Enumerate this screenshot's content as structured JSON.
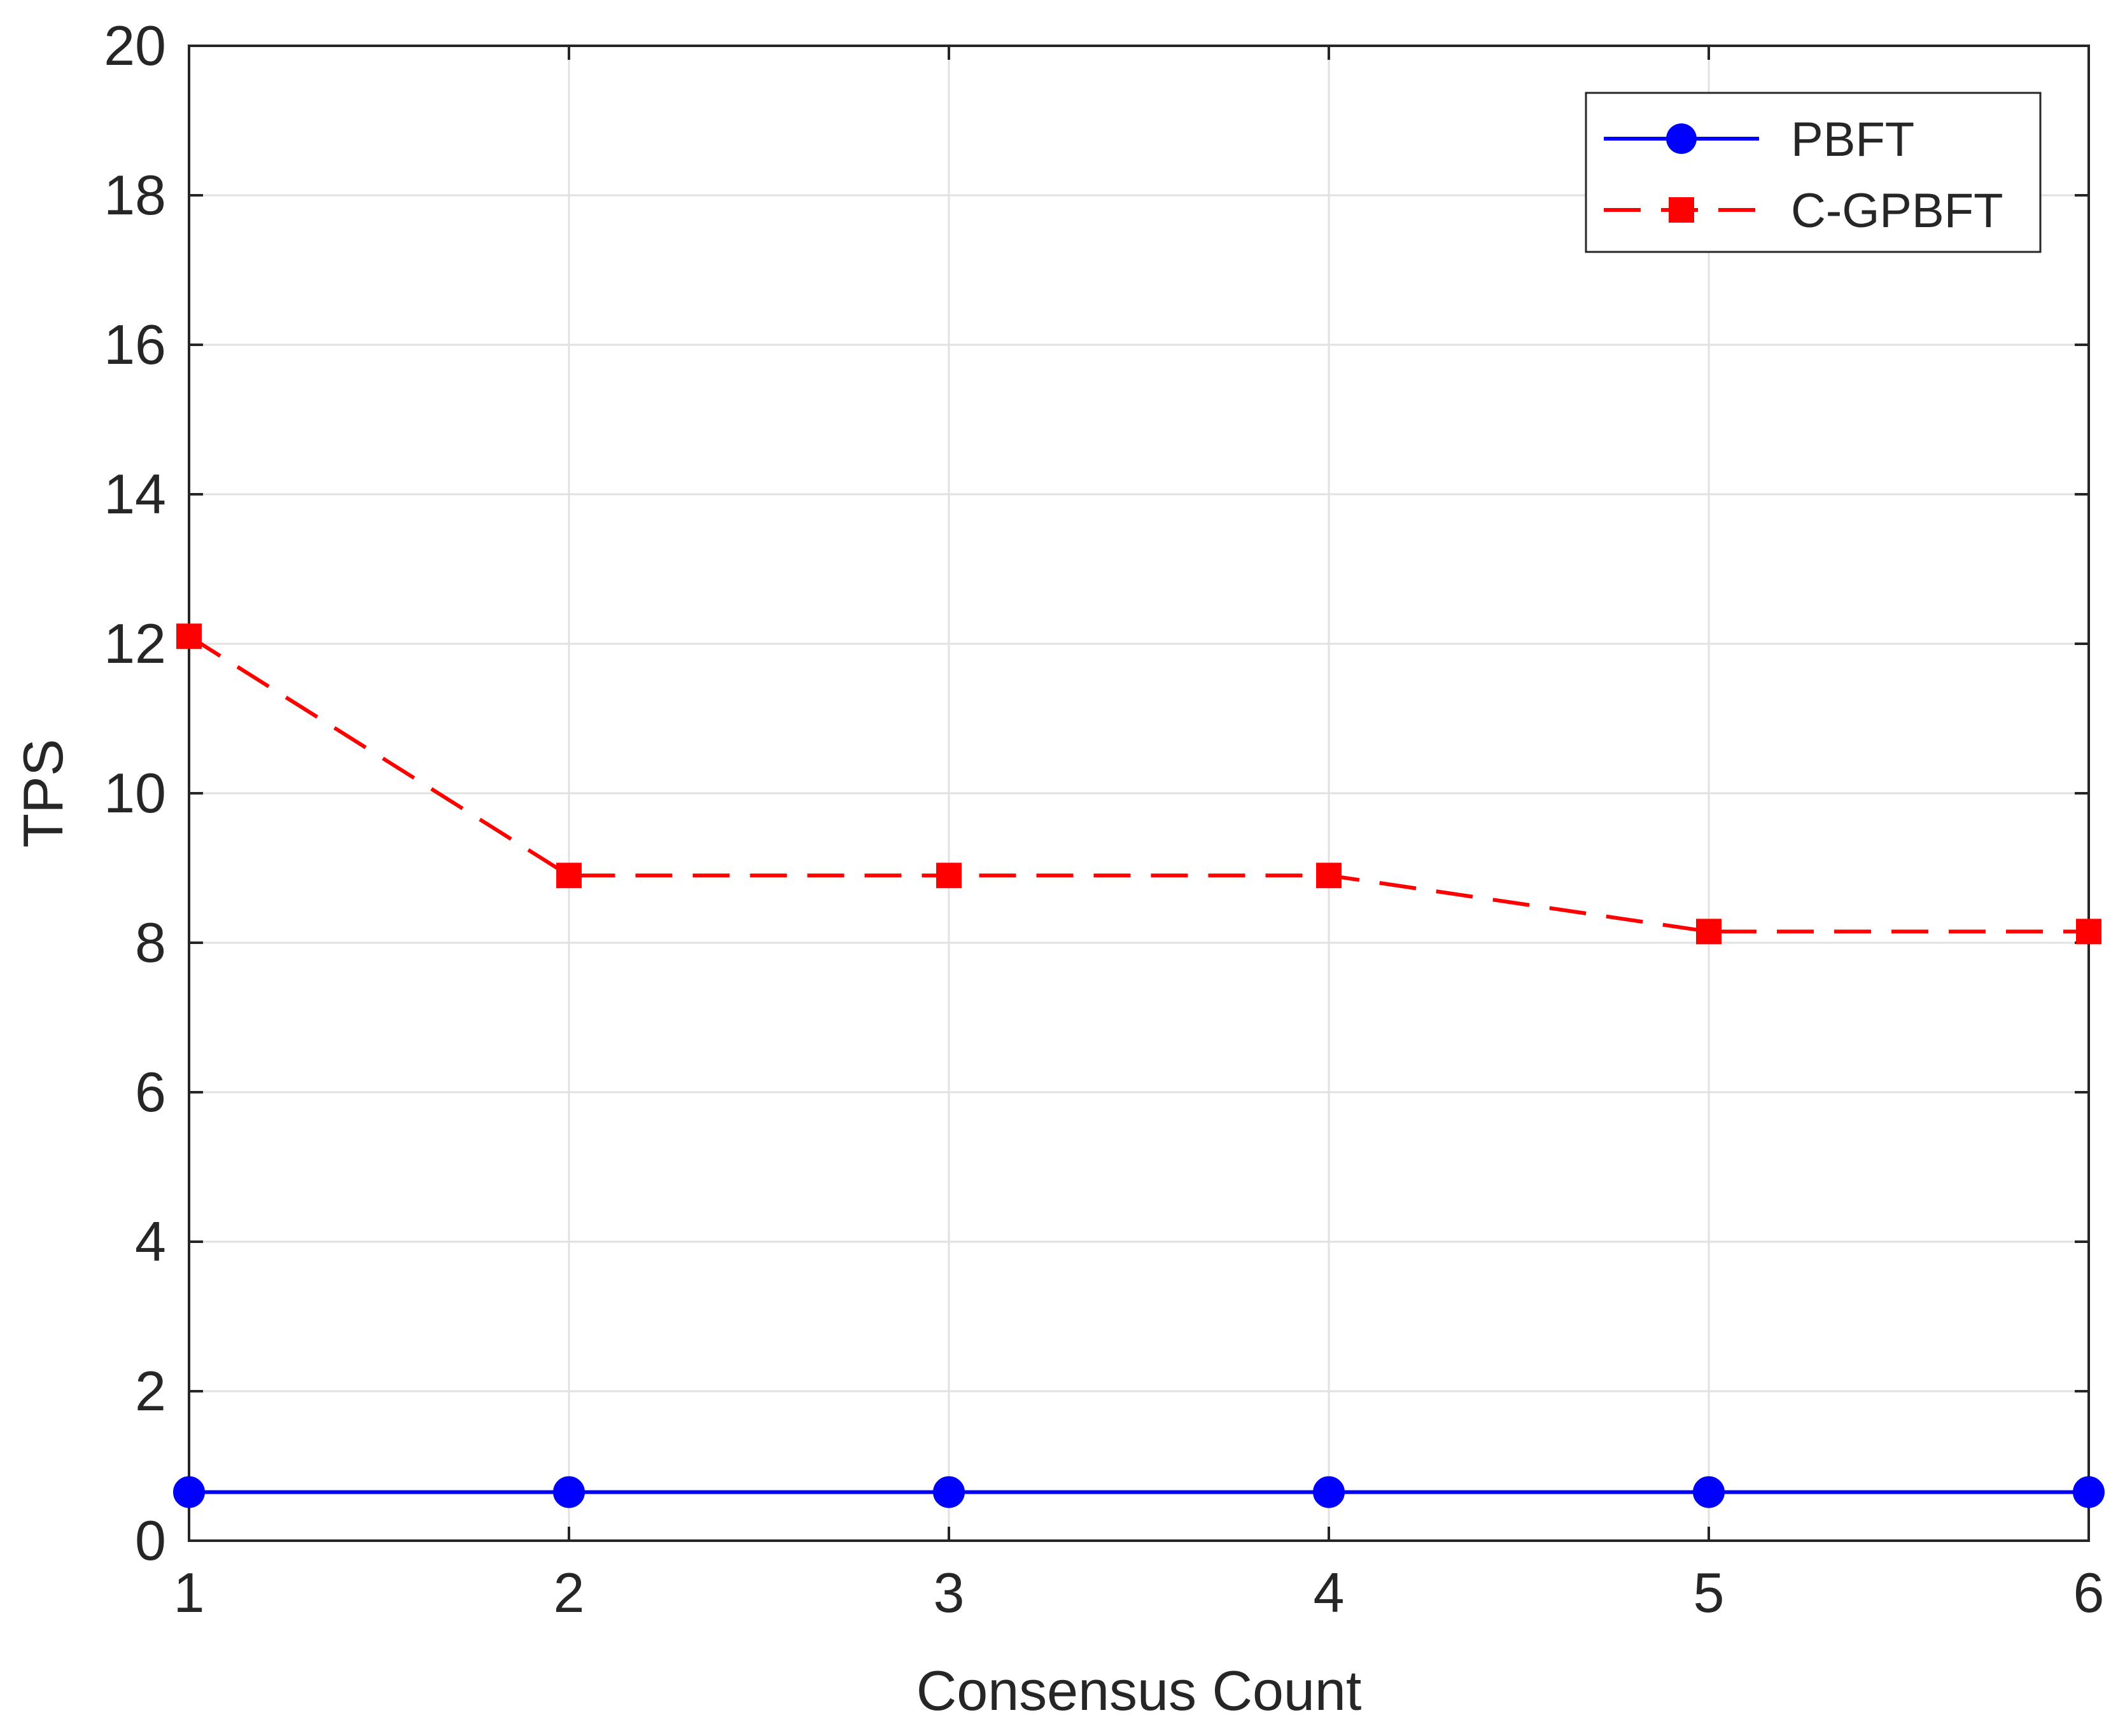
{
  "chart_data": {
    "type": "line",
    "title": "",
    "xlabel": "Consensus Count",
    "ylabel": "TPS",
    "x": [
      1,
      2,
      3,
      4,
      5,
      6
    ],
    "xlim": [
      1,
      6
    ],
    "ylim": [
      0,
      20
    ],
    "xticks": [
      "1",
      "2",
      "3",
      "4",
      "5",
      "6"
    ],
    "yticks": [
      "0",
      "2",
      "4",
      "6",
      "8",
      "10",
      "12",
      "14",
      "16",
      "18",
      "20"
    ],
    "grid": true,
    "legend_position": "top-right",
    "series": [
      {
        "name": "PBFT",
        "values": [
          0.65,
          0.65,
          0.65,
          0.65,
          0.65,
          0.65
        ],
        "color": "#0000ff",
        "line_style": "solid",
        "marker": "circle"
      },
      {
        "name": "C-GPBFT",
        "values": [
          12.1,
          8.9,
          8.9,
          8.9,
          8.15,
          8.15
        ],
        "color": "#ff0000",
        "line_style": "dashed",
        "marker": "square"
      }
    ]
  }
}
